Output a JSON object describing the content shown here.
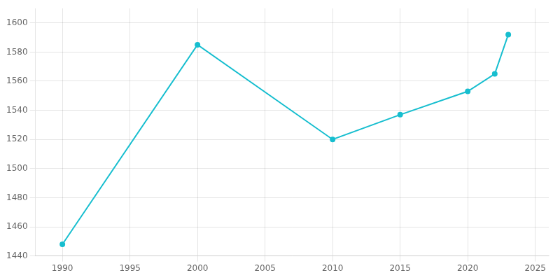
{
  "chart_data": {
    "type": "line",
    "x": [
      1990,
      2000,
      2010,
      2015,
      2020,
      2022,
      2023
    ],
    "values": [
      1448,
      1585,
      1520,
      1537,
      1553,
      1565,
      1592
    ],
    "color": "#17becf",
    "marker": "circle",
    "xlim": [
      1988,
      2026
    ],
    "xticks": [
      1990,
      1995,
      2000,
      2005,
      2010,
      2015,
      2020,
      2025
    ],
    "ylim": [
      1440,
      1610
    ],
    "yticks": [
      1440,
      1460,
      1480,
      1500,
      1520,
      1540,
      1560,
      1580,
      1600
    ],
    "grid": true
  }
}
